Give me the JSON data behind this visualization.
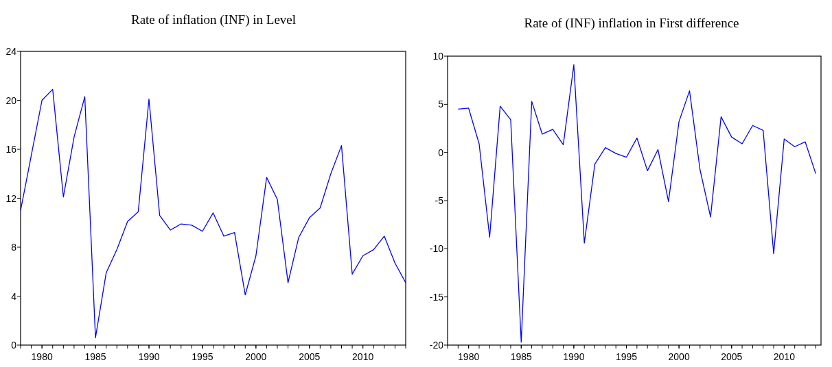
{
  "chart_data": [
    {
      "type": "line",
      "title": "Rate of inflation (INF) in Level",
      "x": [
        1978,
        1979,
        1980,
        1981,
        1982,
        1983,
        1984,
        1985,
        1986,
        1987,
        1988,
        1989,
        1990,
        1991,
        1992,
        1993,
        1994,
        1995,
        1996,
        1997,
        1998,
        1999,
        2000,
        2001,
        2002,
        2003,
        2004,
        2005,
        2006,
        2007,
        2008,
        2009,
        2010,
        2011,
        2012,
        2013,
        2014
      ],
      "series": [
        {
          "color": "#0000ff",
          "values": [
            11.0,
            15.5,
            20.0,
            20.9,
            12.1,
            17.0,
            20.3,
            0.6,
            5.9,
            7.8,
            10.1,
            10.9,
            20.1,
            10.6,
            9.4,
            9.9,
            9.8,
            9.3,
            10.8,
            8.9,
            9.2,
            4.1,
            7.3,
            13.7,
            11.9,
            5.1,
            8.8,
            10.4,
            11.2,
            14.0,
            16.3,
            5.8,
            7.3,
            7.8,
            8.9,
            6.7,
            5.1
          ]
        }
      ],
      "xlim": [
        1978,
        2014
      ],
      "xticks": [
        1980,
        1985,
        1990,
        1995,
        2000,
        2005,
        2010
      ],
      "ylim": [
        0,
        24
      ],
      "yticks": [
        0,
        4,
        8,
        12,
        16,
        20,
        24
      ]
    },
    {
      "type": "line",
      "title": "Rate of (INF) inflation in First difference",
      "x": [
        1979,
        1980,
        1981,
        1982,
        1983,
        1984,
        1985,
        1986,
        1987,
        1988,
        1989,
        1990,
        1991,
        1992,
        1993,
        1994,
        1995,
        1996,
        1997,
        1998,
        1999,
        2000,
        2001,
        2002,
        2003,
        2004,
        2005,
        2006,
        2007,
        2008,
        2009,
        2010,
        2011,
        2012,
        2013
      ],
      "series": [
        {
          "color": "#0000ff",
          "values": [
            4.5,
            4.6,
            0.9,
            -8.8,
            4.8,
            3.4,
            -19.7,
            5.3,
            1.9,
            2.4,
            0.8,
            9.1,
            -9.4,
            -1.2,
            0.5,
            -0.1,
            -0.5,
            1.5,
            -1.9,
            0.3,
            -5.1,
            3.2,
            6.4,
            -1.8,
            -6.7,
            3.7,
            1.6,
            0.9,
            2.8,
            2.3,
            -10.5,
            1.4,
            0.6,
            1.1,
            -2.2
          ]
        }
      ],
      "xlim": [
        1978,
        2013.5
      ],
      "xticks": [
        1980,
        1985,
        1990,
        1995,
        2000,
        2005,
        2010
      ],
      "ylim": [
        -20,
        10
      ],
      "yticks": [
        -20,
        -15,
        -10,
        -5,
        0,
        5,
        10
      ]
    }
  ]
}
